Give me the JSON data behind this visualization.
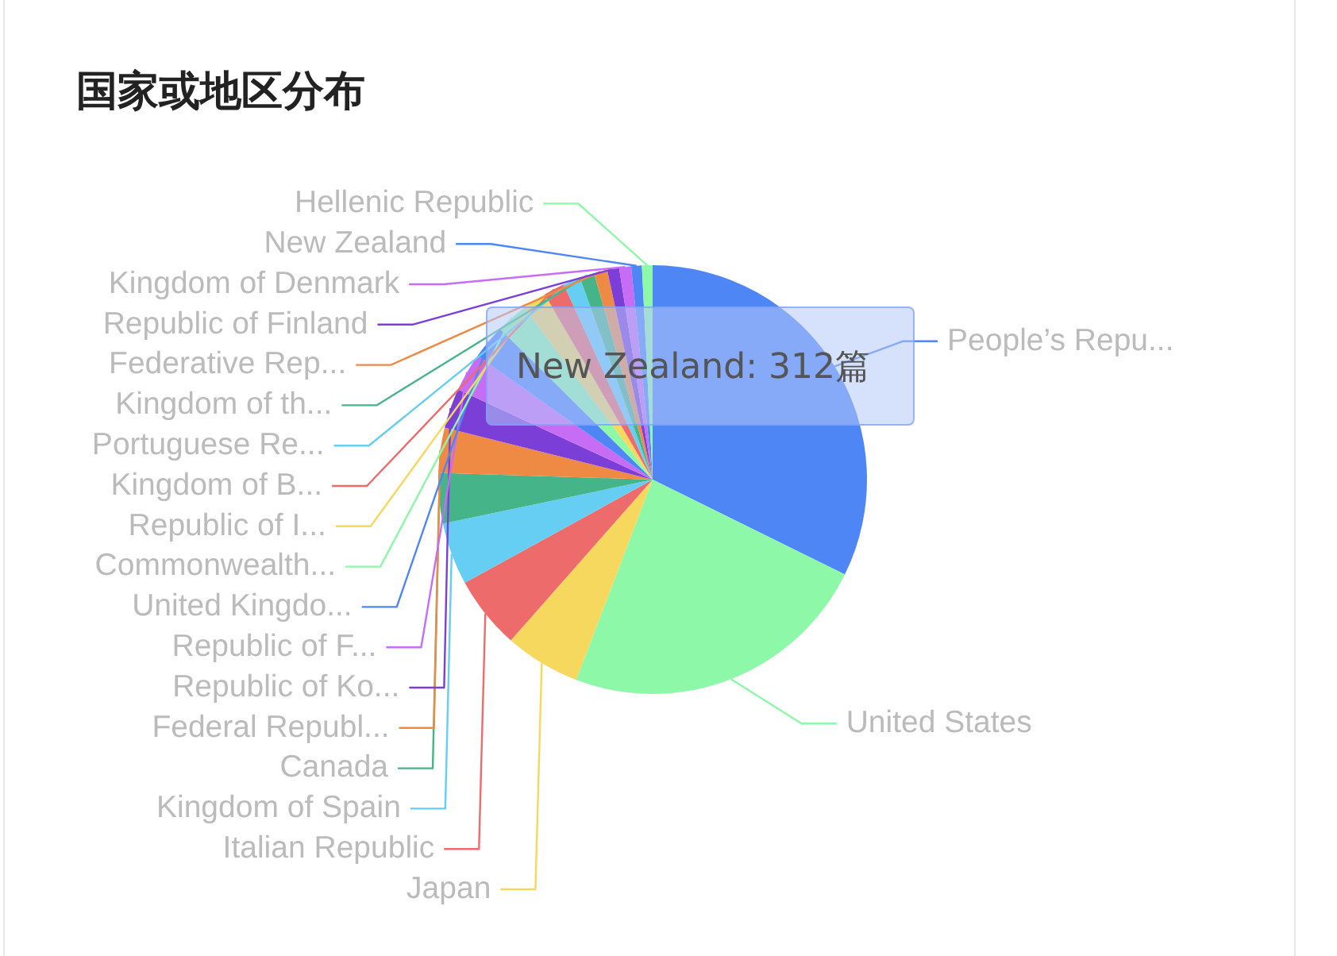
{
  "chart_data": {
    "type": "pie",
    "title": "国家或地区分布",
    "categories": [
      "People’s Repu...",
      "United States",
      "Japan",
      "Italian Republic",
      "Kingdom of Spain",
      "Canada",
      "Federal Republ...",
      "Republic of Ko...",
      "Republic of F...",
      "United Kingdo...",
      "Commonwealth...",
      "Republic of I...",
      "Kingdom of B...",
      "Portuguese Re...",
      "Kingdom of th...",
      "Federative Rep...",
      "Republic of Finland",
      "Kingdom of Denmark",
      "New Zealand",
      "Hellenic Republic"
    ],
    "values": [
      32.3,
      23.5,
      5.7,
      5.5,
      4.7,
      3.8,
      3.4,
      3.0,
      2.9,
      2.6,
      2.4,
      1.8,
      1.6,
      1.3,
      1.1,
      1.0,
      0.9,
      0.9,
      0.8,
      0.8
    ],
    "colors": [
      "#4e86f6",
      "#8cf8a8",
      "#f7d85e",
      "#ee6b6b",
      "#66cdf3",
      "#45b489",
      "#ef8a44",
      "#7b3fd8",
      "#c76cf4",
      "#4e86f6",
      "#8cf8a8",
      "#f7d85e",
      "#ee6b6b",
      "#66cdf3",
      "#45b489",
      "#ef8a44",
      "#7b3fd8",
      "#c76cf4",
      "#4e86f6",
      "#8cf8a8"
    ],
    "legend": false,
    "annotations": [
      "New Zealand: 312篇"
    ]
  }
}
